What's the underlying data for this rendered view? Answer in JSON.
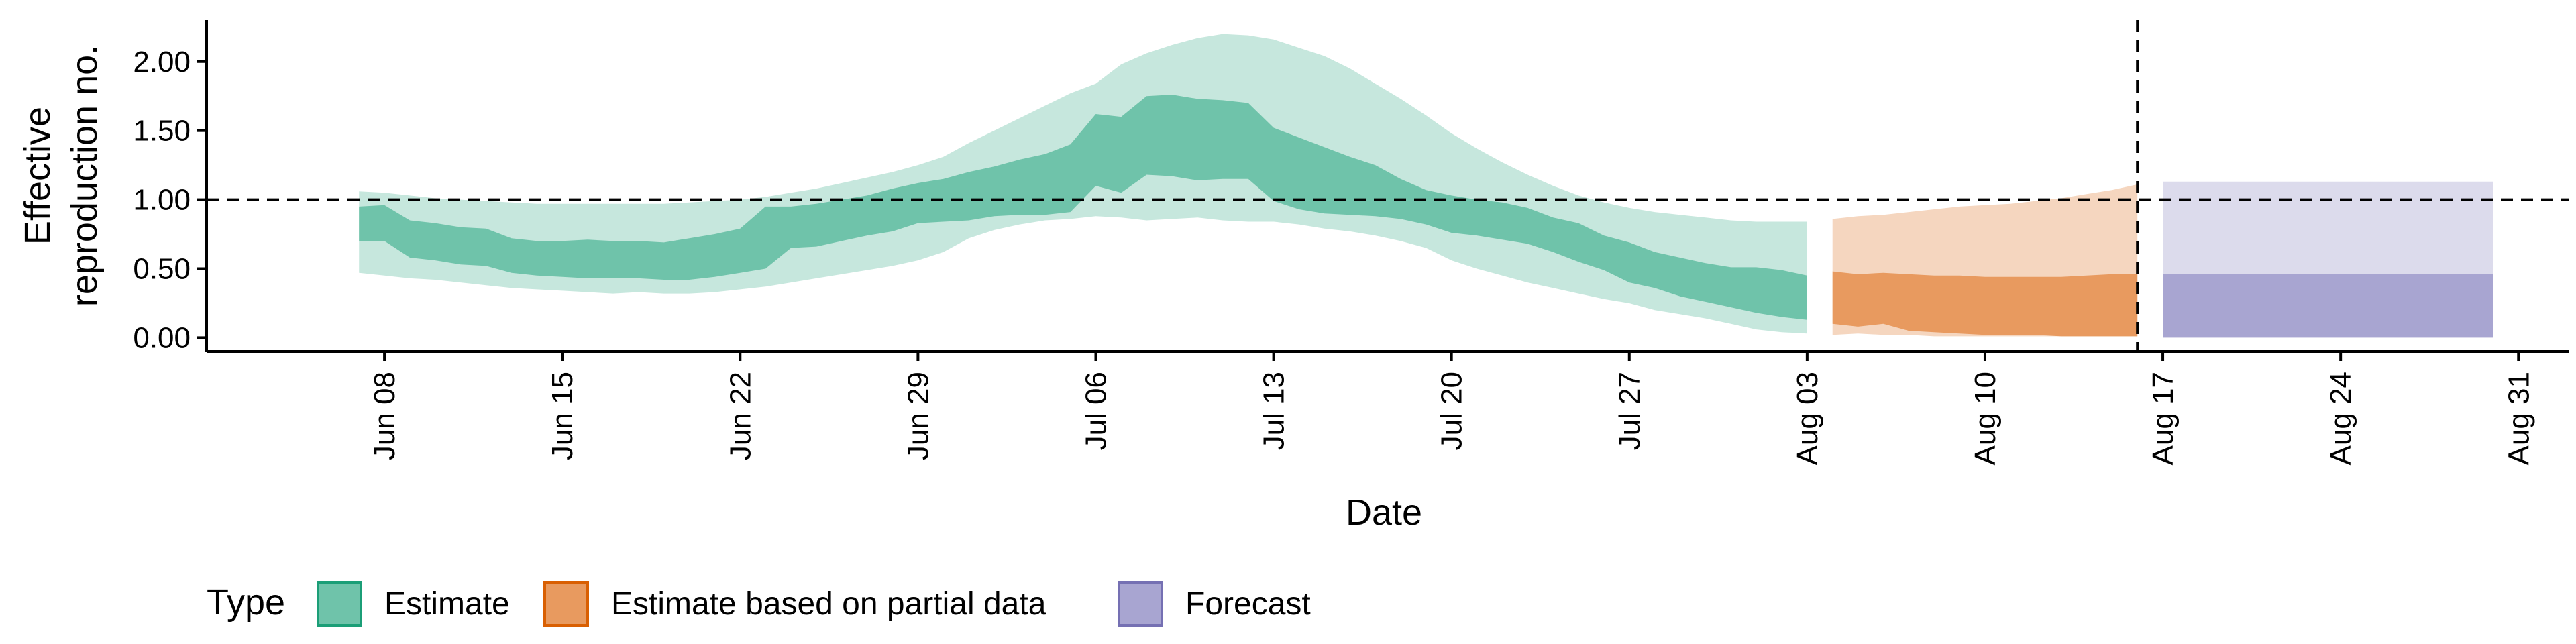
{
  "chart_data": {
    "type": "area",
    "xlabel": "Date",
    "ylabel": "Effective reproduction no.",
    "ylabel_lines": [
      "Effective",
      "reproduction no."
    ],
    "xlim": [
      "2020-06-01",
      "2020-09-02"
    ],
    "ylim": [
      -0.1,
      2.3
    ],
    "yticks": [
      0,
      0.5,
      1,
      1.5,
      2
    ],
    "ytick_labels": [
      "0.00",
      "0.50",
      "1.00",
      "1.50",
      "2.00"
    ],
    "xticks": [
      "2020-06-08",
      "2020-06-15",
      "2020-06-22",
      "2020-06-29",
      "2020-07-06",
      "2020-07-13",
      "2020-07-20",
      "2020-07-27",
      "2020-08-03",
      "2020-08-10",
      "2020-08-17",
      "2020-08-24",
      "2020-08-31"
    ],
    "xtick_labels": [
      "Jun 08",
      "Jun 15",
      "Jun 22",
      "Jun 29",
      "Jul 06",
      "Jul 13",
      "Jul 20",
      "Jul 27",
      "Aug 03",
      "Aug 10",
      "Aug 17",
      "Aug 24",
      "Aug 31"
    ],
    "hline": 1.0,
    "vline": "2020-08-16",
    "grid": false,
    "legend": {
      "title": "Type",
      "placement": "bottom",
      "entries": [
        {
          "label": "Estimate",
          "color": "#1b9e77"
        },
        {
          "label": "Estimate based on partial data",
          "color": "#d95f02"
        },
        {
          "label": "Forecast",
          "color": "#7570b3"
        }
      ]
    },
    "series": [
      {
        "name": "Estimate",
        "color": "#1b9e77",
        "x": [
          "2020-06-07",
          "2020-06-08",
          "2020-06-09",
          "2020-06-10",
          "2020-06-11",
          "2020-06-12",
          "2020-06-13",
          "2020-06-14",
          "2020-06-15",
          "2020-06-16",
          "2020-06-17",
          "2020-06-18",
          "2020-06-19",
          "2020-06-20",
          "2020-06-21",
          "2020-06-22",
          "2020-06-23",
          "2020-06-24",
          "2020-06-25",
          "2020-06-26",
          "2020-06-27",
          "2020-06-28",
          "2020-06-29",
          "2020-06-30",
          "2020-07-01",
          "2020-07-02",
          "2020-07-03",
          "2020-07-04",
          "2020-07-05",
          "2020-07-06",
          "2020-07-07",
          "2020-07-08",
          "2020-07-09",
          "2020-07-10",
          "2020-07-11",
          "2020-07-12",
          "2020-07-13",
          "2020-07-14",
          "2020-07-15",
          "2020-07-16",
          "2020-07-17",
          "2020-07-18",
          "2020-07-19",
          "2020-07-20",
          "2020-07-21",
          "2020-07-22",
          "2020-07-23",
          "2020-07-24",
          "2020-07-25",
          "2020-07-26",
          "2020-07-27",
          "2020-07-28",
          "2020-07-29",
          "2020-07-30",
          "2020-07-31",
          "2020-08-01",
          "2020-08-02",
          "2020-08-03"
        ],
        "lower_90": [
          0.47,
          0.45,
          0.43,
          0.42,
          0.4,
          0.38,
          0.36,
          0.35,
          0.34,
          0.33,
          0.32,
          0.33,
          0.32,
          0.32,
          0.33,
          0.35,
          0.37,
          0.4,
          0.43,
          0.46,
          0.49,
          0.52,
          0.56,
          0.62,
          0.72,
          0.78,
          0.82,
          0.85,
          0.86,
          0.88,
          0.87,
          0.85,
          0.86,
          0.87,
          0.85,
          0.84,
          0.84,
          0.82,
          0.79,
          0.77,
          0.74,
          0.7,
          0.65,
          0.56,
          0.5,
          0.45,
          0.4,
          0.36,
          0.32,
          0.28,
          0.25,
          0.2,
          0.17,
          0.14,
          0.1,
          0.06,
          0.04,
          0.03
        ],
        "lower_50": [
          0.7,
          0.7,
          0.58,
          0.56,
          0.53,
          0.52,
          0.47,
          0.45,
          0.44,
          0.43,
          0.43,
          0.43,
          0.42,
          0.42,
          0.44,
          0.47,
          0.5,
          0.65,
          0.66,
          0.7,
          0.74,
          0.77,
          0.83,
          0.84,
          0.85,
          0.88,
          0.89,
          0.89,
          0.91,
          1.1,
          1.05,
          1.18,
          1.17,
          1.14,
          1.15,
          1.15,
          0.99,
          0.93,
          0.9,
          0.89,
          0.88,
          0.86,
          0.82,
          0.76,
          0.74,
          0.71,
          0.68,
          0.62,
          0.55,
          0.49,
          0.4,
          0.36,
          0.3,
          0.26,
          0.22,
          0.18,
          0.15,
          0.13
        ],
        "upper_50": [
          0.95,
          0.96,
          0.85,
          0.83,
          0.8,
          0.79,
          0.72,
          0.7,
          0.7,
          0.71,
          0.7,
          0.7,
          0.69,
          0.72,
          0.75,
          0.79,
          0.95,
          0.95,
          0.97,
          1.0,
          1.03,
          1.08,
          1.12,
          1.15,
          1.2,
          1.24,
          1.29,
          1.33,
          1.4,
          1.62,
          1.6,
          1.75,
          1.76,
          1.73,
          1.72,
          1.7,
          1.52,
          1.45,
          1.38,
          1.31,
          1.25,
          1.15,
          1.07,
          1.03,
          1.0,
          0.98,
          0.94,
          0.87,
          0.83,
          0.74,
          0.69,
          0.62,
          0.58,
          0.54,
          0.51,
          0.51,
          0.49,
          0.45
        ],
        "upper_90": [
          1.06,
          1.05,
          1.03,
          1.01,
          1.0,
          0.99,
          0.98,
          0.97,
          0.97,
          0.97,
          0.97,
          0.97,
          0.97,
          0.98,
          0.99,
          1.0,
          1.02,
          1.05,
          1.08,
          1.12,
          1.16,
          1.2,
          1.25,
          1.31,
          1.41,
          1.5,
          1.59,
          1.68,
          1.77,
          1.84,
          1.98,
          2.06,
          2.12,
          2.17,
          2.2,
          2.19,
          2.16,
          2.1,
          2.04,
          1.95,
          1.84,
          1.73,
          1.61,
          1.48,
          1.37,
          1.27,
          1.18,
          1.1,
          1.03,
          0.98,
          0.94,
          0.91,
          0.89,
          0.87,
          0.85,
          0.84,
          0.84,
          0.84
        ]
      },
      {
        "name": "Estimate based on partial data",
        "color": "#d95f02",
        "x": [
          "2020-08-04",
          "2020-08-05",
          "2020-08-06",
          "2020-08-07",
          "2020-08-08",
          "2020-08-09",
          "2020-08-10",
          "2020-08-11",
          "2020-08-12",
          "2020-08-13",
          "2020-08-14",
          "2020-08-15",
          "2020-08-16"
        ],
        "lower_90": [
          0.02,
          0.03,
          0.02,
          0.02,
          0.01,
          0.01,
          0.01,
          0.01,
          0.01,
          0.01,
          0.01,
          0.01,
          0.01
        ],
        "lower_50": [
          0.1,
          0.08,
          0.1,
          0.05,
          0.04,
          0.03,
          0.02,
          0.02,
          0.02,
          0.01,
          0.01,
          0.01,
          0.01
        ],
        "upper_50": [
          0.48,
          0.46,
          0.47,
          0.46,
          0.45,
          0.45,
          0.44,
          0.44,
          0.44,
          0.44,
          0.45,
          0.46,
          0.46
        ],
        "upper_90": [
          0.86,
          0.88,
          0.89,
          0.91,
          0.93,
          0.95,
          0.96,
          0.97,
          0.99,
          1.01,
          1.04,
          1.07,
          1.11
        ]
      },
      {
        "name": "Forecast",
        "color": "#7570b3",
        "x": [
          "2020-08-17",
          "2020-08-30"
        ],
        "lower_90": [
          0.0,
          0.0
        ],
        "lower_50": [
          0.0,
          0.0
        ],
        "upper_50": [
          0.46,
          0.46
        ],
        "upper_90": [
          1.13,
          1.13
        ]
      }
    ]
  }
}
